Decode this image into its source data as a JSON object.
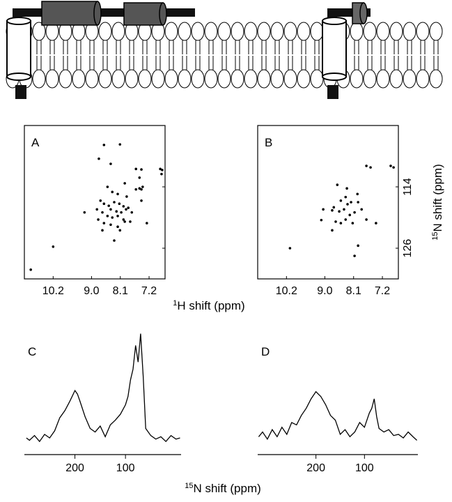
{
  "chart_data": [
    {
      "type": "scatter",
      "label": "A",
      "color": "#000000",
      "xlabel": {
        "sup": "1",
        "text": "H shift (ppm)"
      },
      "xlim": [
        11.1,
        6.7
      ],
      "xticks": [
        10.2,
        {
          "value": 9,
          "label": "9.0"
        },
        8.1,
        7.2
      ],
      "ylim": [
        132,
        102
      ],
      "x": [
        8.61,
        8.11,
        8.77,
        8.4,
        7.61,
        7.44,
        6.85,
        6.79,
        6.81,
        7.5,
        7.61,
        7.5,
        7.44,
        7.4,
        7.96,
        8.5,
        8.35,
        8.18,
        7.9,
        8.72,
        8.61,
        8.46,
        8.29,
        8.13,
        8.0,
        7.85,
        8.4,
        8.22,
        8.07,
        7.92,
        7.74,
        8.66,
        8.5,
        8.35,
        8.18,
        8.0,
        8.83,
        8.79,
        7.79,
        8.61,
        8.4,
        8.18,
        7.96,
        8.11,
        8.29,
        9.22,
        8.66,
        7.44,
        10.2,
        10.9,
        7.27
      ],
      "values": [
        105.8,
        105.7,
        108.5,
        109.5,
        110.5,
        110.6,
        110.5,
        110.7,
        111.5,
        112.2,
        114.5,
        114.3,
        114.5,
        114.0,
        113.3,
        114.0,
        115.0,
        115.4,
        115.9,
        116.7,
        117.3,
        117.7,
        117.0,
        117.3,
        117.8,
        118.1,
        118.4,
        118.8,
        119.0,
        118.4,
        119.0,
        119.0,
        119.7,
        120.0,
        119.7,
        120.4,
        118.4,
        120.4,
        120.8,
        121.1,
        121.4,
        121.8,
        120.8,
        122.5,
        124.5,
        119.0,
        122.5,
        116.7,
        125.7,
        130.2,
        121.1
      ]
    },
    {
      "type": "scatter",
      "label": "B",
      "color": "#000000",
      "ylabel": {
        "sup": "15",
        "text": "N shift (ppm)"
      },
      "xlim": [
        11.1,
        6.7
      ],
      "xticks": [
        10.2,
        {
          "value": 9,
          "label": "9.0"
        },
        8.1,
        7.2
      ],
      "ylim": [
        132,
        102
      ],
      "yticks": [
        114,
        126
      ],
      "x": [
        8.61,
        8.31,
        8.35,
        8.29,
        8.5,
        8.18,
        7.96,
        8.72,
        8.77,
        8.55,
        8.4,
        8.22,
        8.07,
        7.85,
        7.98,
        9.05,
        9.11,
        8.66,
        8.5,
        8.35,
        8.13,
        7.7,
        7.4,
        8.77,
        7.7,
        7.57,
        6.94,
        6.85,
        10.09,
        8.07,
        7.96
      ],
      "values": [
        113.6,
        114.3,
        116.0,
        117.4,
        116.7,
        117.0,
        117.0,
        118.0,
        118.6,
        118.8,
        118.4,
        119.5,
        119.0,
        118.4,
        115.4,
        118.4,
        120.5,
        120.8,
        121.1,
        120.4,
        121.1,
        120.4,
        121.1,
        122.5,
        109.9,
        110.2,
        109.9,
        110.2,
        126.0,
        127.5,
        125.5
      ]
    },
    {
      "type": "line",
      "label": "C",
      "color": "#000000",
      "xlabel": {
        "sup": "15",
        "text": "N shift (ppm)"
      },
      "xlim": [
        300,
        -10
      ],
      "xticks": [
        200,
        100
      ],
      "ylim": [
        0,
        100
      ],
      "x": [
        296,
        290,
        280,
        270,
        260,
        250,
        240,
        230,
        220,
        210,
        200,
        195,
        190,
        180,
        170,
        160,
        150,
        140,
        130,
        120,
        110,
        100,
        95,
        90,
        85,
        80,
        75,
        70,
        65,
        60,
        50,
        40,
        30,
        20,
        10,
        0,
        -8
      ],
      "values": [
        7,
        5,
        9,
        4,
        10,
        7,
        13,
        24,
        30,
        38,
        47,
        44,
        38,
        25,
        15,
        12,
        17,
        8,
        18,
        22,
        27,
        35,
        42,
        56,
        65,
        85,
        71,
        95,
        59,
        15,
        9,
        6,
        8,
        4,
        9,
        6,
        7
      ]
    },
    {
      "type": "line",
      "label": "D",
      "color": "#000000",
      "xlim": [
        320,
        -10
      ],
      "xticks": [
        200,
        100
      ],
      "ylim": [
        0,
        100
      ],
      "x": [
        318,
        310,
        300,
        290,
        280,
        270,
        260,
        250,
        240,
        230,
        220,
        210,
        200,
        190,
        180,
        170,
        160,
        150,
        140,
        130,
        120,
        110,
        100,
        90,
        85,
        80,
        75,
        70,
        60,
        50,
        40,
        30,
        20,
        10,
        0,
        -8
      ],
      "values": [
        8,
        12,
        6,
        14,
        8,
        16,
        10,
        20,
        18,
        26,
        32,
        40,
        46,
        42,
        35,
        26,
        22,
        10,
        14,
        8,
        12,
        20,
        16,
        28,
        32,
        40,
        25,
        15,
        12,
        14,
        9,
        10,
        7,
        12,
        8,
        5
      ]
    }
  ]
}
